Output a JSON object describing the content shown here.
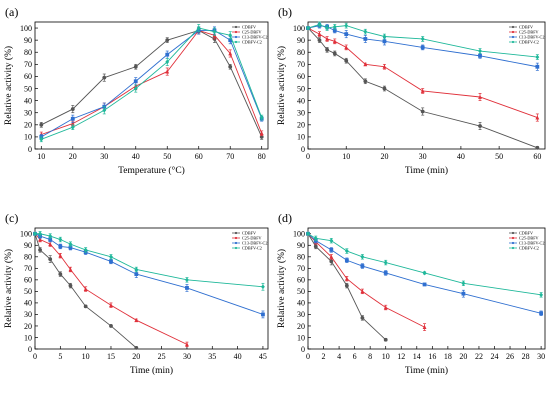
{
  "colors": {
    "CDBFV": "#555555",
    "C25-DBFV": "#e0303a",
    "C13-DBFV-C2": "#2f6fd0",
    "CDBFV-C2": "#1fb89a"
  },
  "chart_data": [
    {
      "type": "line",
      "panel": "(a)",
      "xlabel": "Temperature (°C)",
      "ylabel": "Relative activity (%)",
      "xlim": [
        8,
        82
      ],
      "ylim": [
        0,
        105
      ],
      "xticks": [
        10,
        20,
        30,
        40,
        50,
        60,
        70,
        80
      ],
      "yticks": [
        0,
        10,
        20,
        30,
        40,
        50,
        60,
        70,
        80,
        90,
        100
      ],
      "legend_position": "top-right",
      "grid": false,
      "series": [
        {
          "name": "CDBFV",
          "x": [
            10,
            20,
            30,
            40,
            50,
            60,
            65,
            70,
            80
          ],
          "y": [
            20,
            33,
            59,
            68,
            90,
            98,
            91,
            68,
            10
          ],
          "err": [
            2,
            3,
            3,
            2,
            2,
            2,
            3,
            2,
            2
          ]
        },
        {
          "name": "C25-DBFV",
          "x": [
            10,
            20,
            30,
            40,
            50,
            60,
            65,
            70,
            80
          ],
          "y": [
            12,
            21,
            35,
            52,
            64,
            98,
            94,
            79,
            13
          ],
          "err": [
            2,
            2,
            3,
            3,
            3,
            3,
            3,
            3,
            2
          ]
        },
        {
          "name": "C13-DBFV-C2",
          "x": [
            10,
            20,
            30,
            40,
            50,
            60,
            65,
            70,
            80
          ],
          "y": [
            10,
            25,
            35,
            56,
            78,
            98,
            98,
            90,
            25
          ],
          "err": [
            2,
            3,
            3,
            3,
            3,
            3,
            3,
            3,
            2
          ]
        },
        {
          "name": "CDBFV-C2",
          "x": [
            10,
            20,
            30,
            40,
            50,
            60,
            65,
            70,
            80
          ],
          "y": [
            8,
            18,
            32,
            50,
            72,
            100,
            97,
            94,
            26
          ],
          "err": [
            2,
            2,
            3,
            3,
            3,
            3,
            3,
            3,
            2
          ]
        }
      ]
    },
    {
      "type": "line",
      "panel": "(b)",
      "xlabel": "Time (min)",
      "ylabel": "Relative activity (%)",
      "xlim": [
        0,
        62
      ],
      "ylim": [
        0,
        105
      ],
      "xticks": [
        0,
        10,
        20,
        30,
        40,
        50,
        60
      ],
      "yticks": [
        0,
        10,
        20,
        30,
        40,
        50,
        60,
        70,
        80,
        90,
        100
      ],
      "legend_position": "top-right",
      "grid": false,
      "series": [
        {
          "name": "CDBFV",
          "x": [
            0,
            3,
            5,
            7,
            10,
            15,
            20,
            30,
            45,
            60
          ],
          "y": [
            100,
            90,
            82,
            79,
            73,
            56,
            50,
            31,
            19,
            1
          ],
          "err": [
            1,
            2,
            2,
            2,
            2,
            2,
            2,
            3,
            3,
            1
          ]
        },
        {
          "name": "C25-DBFV",
          "x": [
            0,
            3,
            5,
            7,
            10,
            15,
            20,
            30,
            45,
            60
          ],
          "y": [
            100,
            95,
            91,
            89,
            84,
            70,
            68,
            48,
            43,
            26
          ],
          "err": [
            1,
            2,
            2,
            2,
            2,
            1,
            2,
            2,
            3,
            3
          ]
        },
        {
          "name": "C13-DBFV-C2",
          "x": [
            0,
            3,
            5,
            7,
            10,
            15,
            20,
            30,
            45,
            60
          ],
          "y": [
            100,
            102,
            101,
            98,
            95,
            91,
            89,
            84,
            77,
            68
          ],
          "err": [
            1,
            2,
            2,
            2,
            3,
            3,
            3,
            2,
            2,
            3
          ]
        },
        {
          "name": "CDBFV-C2",
          "x": [
            0,
            3,
            5,
            7,
            10,
            15,
            20,
            30,
            45,
            60
          ],
          "y": [
            100,
            103,
            100,
            101,
            102,
            97,
            93,
            91,
            81,
            76
          ],
          "err": [
            1,
            2,
            2,
            2,
            2,
            2,
            2,
            2,
            2,
            2
          ]
        }
      ]
    },
    {
      "type": "line",
      "panel": "(c)",
      "xlabel": "Time (min)",
      "ylabel": "Relative activity (%)",
      "xlim": [
        0,
        46
      ],
      "ylim": [
        0,
        105
      ],
      "xticks": [
        0,
        5,
        10,
        15,
        20,
        25,
        30,
        35,
        40,
        45
      ],
      "yticks": [
        0,
        10,
        20,
        30,
        40,
        50,
        60,
        70,
        80,
        90,
        100
      ],
      "legend_position": "top-right",
      "grid": false,
      "series": [
        {
          "name": "CDBFV",
          "x": [
            0,
            1,
            3,
            5,
            7,
            10,
            15,
            20
          ],
          "y": [
            100,
            86,
            78,
            65,
            55,
            37,
            20,
            1
          ],
          "err": [
            1,
            2,
            3,
            2,
            2,
            1,
            1,
            1
          ]
        },
        {
          "name": "C25-DBFV",
          "x": [
            0,
            1,
            3,
            5,
            7,
            10,
            15,
            20,
            30
          ],
          "y": [
            100,
            95,
            91,
            81,
            69,
            52,
            38,
            25,
            4
          ],
          "err": [
            1,
            2,
            2,
            2,
            2,
            2,
            2,
            1,
            2
          ]
        },
        {
          "name": "C13-DBFV-C2",
          "x": [
            0,
            1,
            3,
            5,
            7,
            10,
            15,
            20,
            30,
            45
          ],
          "y": [
            100,
            98,
            95,
            89,
            88,
            84,
            76,
            65,
            53,
            30
          ],
          "err": [
            1,
            2,
            2,
            2,
            2,
            2,
            2,
            3,
            3,
            3
          ]
        },
        {
          "name": "CDBFV-C2",
          "x": [
            0,
            1,
            3,
            5,
            7,
            10,
            15,
            20,
            30,
            45
          ],
          "y": [
            100,
            100,
            98,
            95,
            91,
            86,
            80,
            69,
            60,
            54
          ],
          "err": [
            1,
            2,
            2,
            2,
            2,
            2,
            2,
            2,
            2,
            3
          ]
        }
      ]
    },
    {
      "type": "line",
      "panel": "(d)",
      "xlabel": "Time (min)",
      "ylabel": "Relative activity (%)",
      "xlim": [
        0,
        30.5
      ],
      "ylim": [
        0,
        105
      ],
      "xticks": [
        0,
        2,
        4,
        6,
        8,
        10,
        12,
        14,
        16,
        18,
        20,
        22,
        24,
        26,
        28,
        30
      ],
      "yticks": [
        0,
        10,
        20,
        30,
        40,
        50,
        60,
        70,
        80,
        90,
        100
      ],
      "legend_position": "top-right",
      "grid": false,
      "series": [
        {
          "name": "CDBFV",
          "x": [
            0,
            1,
            3,
            5,
            7,
            10
          ],
          "y": [
            100,
            89,
            76,
            55,
            27,
            8
          ],
          "err": [
            1,
            2,
            3,
            2,
            2,
            1
          ]
        },
        {
          "name": "C25-DBFV",
          "x": [
            0,
            1,
            3,
            5,
            7,
            10,
            15
          ],
          "y": [
            100,
            93,
            80,
            61,
            50,
            36,
            19
          ],
          "err": [
            1,
            2,
            2,
            2,
            2,
            2,
            3
          ]
        },
        {
          "name": "C13-DBFV-C2",
          "x": [
            0,
            1,
            3,
            5,
            7,
            10,
            15,
            20,
            30
          ],
          "y": [
            100,
            94,
            86,
            77,
            72,
            66,
            56,
            48,
            31
          ],
          "err": [
            1,
            2,
            2,
            2,
            2,
            2,
            1,
            3,
            2
          ]
        },
        {
          "name": "CDBFV-C2",
          "x": [
            0,
            1,
            3,
            5,
            7,
            10,
            15,
            20,
            30
          ],
          "y": [
            100,
            96,
            94,
            85,
            80,
            75,
            66,
            57,
            47
          ],
          "err": [
            1,
            2,
            2,
            2,
            2,
            2,
            1,
            2,
            2
          ]
        }
      ]
    }
  ]
}
